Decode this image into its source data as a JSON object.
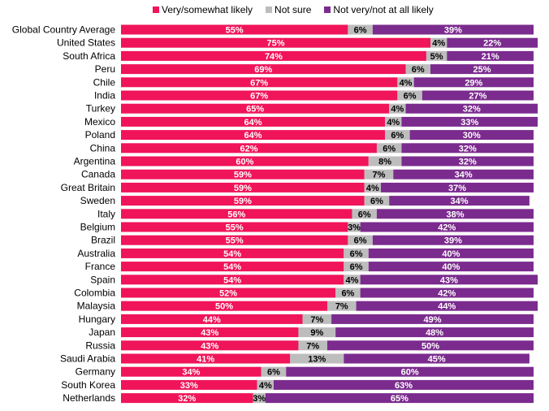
{
  "chart_data": {
    "type": "bar",
    "stacked": true,
    "orientation": "horizontal",
    "legend_position": "top",
    "categories": [
      "Global Country Average",
      "United States",
      "South Africa",
      "Peru",
      "Chile",
      "India",
      "Turkey",
      "Mexico",
      "Poland",
      "China",
      "Argentina",
      "Canada",
      "Great Britain",
      "Sweden",
      "Italy",
      "Belgium",
      "Brazil",
      "Australia",
      "France",
      "Spain",
      "Colombia",
      "Malaysia",
      "Hungary",
      "Japan",
      "Russia",
      "Saudi Arabia",
      "Germany",
      "South Korea",
      "Netherlands"
    ],
    "series": [
      {
        "name": "Very/somewhat likely",
        "color": "#F0145A",
        "values": [
          55,
          75,
          74,
          69,
          67,
          67,
          65,
          64,
          64,
          62,
          60,
          59,
          59,
          59,
          56,
          55,
          55,
          54,
          54,
          54,
          52,
          50,
          44,
          43,
          43,
          41,
          34,
          33,
          32
        ]
      },
      {
        "name": "Not sure",
        "color": "#BDBDBD",
        "values": [
          6,
          4,
          5,
          6,
          4,
          6,
          4,
          4,
          6,
          6,
          8,
          7,
          4,
          6,
          6,
          3,
          6,
          6,
          6,
          4,
          6,
          7,
          7,
          9,
          7,
          13,
          6,
          4,
          3
        ]
      },
      {
        "name": "Not very/not at all likely",
        "color": "#7B2B8E",
        "values": [
          39,
          22,
          21,
          25,
          29,
          27,
          32,
          33,
          30,
          32,
          32,
          34,
          37,
          34,
          38,
          42,
          39,
          40,
          40,
          43,
          42,
          44,
          49,
          48,
          50,
          45,
          60,
          63,
          65
        ]
      }
    ],
    "value_format": "percent",
    "xlim": [
      0,
      100
    ]
  }
}
